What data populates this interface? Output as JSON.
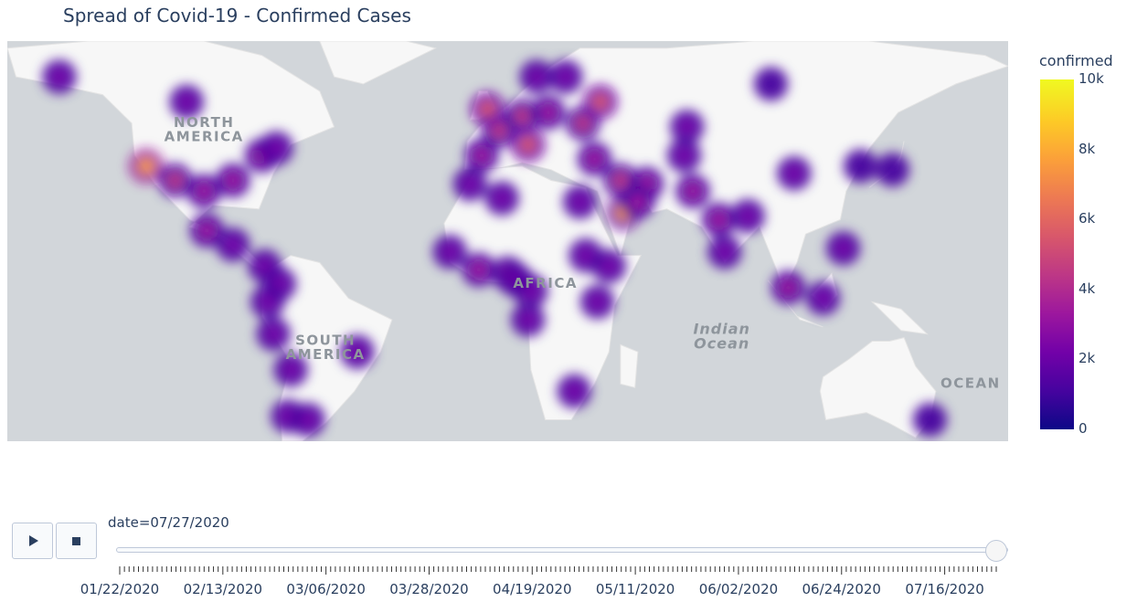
{
  "title": "Spread of Covid-19 - Confirmed Cases",
  "map": {
    "labels": [
      {
        "text": "NORTH",
        "lon": -100,
        "lat": 48
      },
      {
        "text": "AMERICA",
        "lon": -100,
        "lat": 44
      },
      {
        "text": "SOUTH",
        "lon": -58,
        "lat": -13
      },
      {
        "text": "AMERICA",
        "lon": -58,
        "lat": -17
      },
      {
        "text": "AFRICA",
        "lon": 18,
        "lat": 3
      },
      {
        "text": "Indian",
        "lon": 79,
        "lat": -10
      },
      {
        "text": "Ocean",
        "lon": 79,
        "lat": -14
      },
      {
        "text": "OCEAN",
        "lon": 165,
        "lat": -25
      }
    ],
    "info_icon": "info-icon"
  },
  "chart_data": {
    "type": "heatmap",
    "z_field": "confirmed",
    "zlim": [
      0,
      10000
    ],
    "points": [
      {
        "lon": -120,
        "lat": 37,
        "z": 8000
      },
      {
        "lon": -110,
        "lat": 33,
        "z": 4000
      },
      {
        "lon": -100,
        "lat": 30,
        "z": 3000
      },
      {
        "lon": -90,
        "lat": 33,
        "z": 3000
      },
      {
        "lon": -80,
        "lat": 40,
        "z": 3000
      },
      {
        "lon": -75,
        "lat": 42,
        "z": 2500
      },
      {
        "lon": -99,
        "lat": 19,
        "z": 3000
      },
      {
        "lon": -90,
        "lat": 15,
        "z": 2500
      },
      {
        "lon": -79,
        "lat": 9,
        "z": 2000
      },
      {
        "lon": -74,
        "lat": 4,
        "z": 2000
      },
      {
        "lon": -78,
        "lat": -1,
        "z": 2500
      },
      {
        "lon": -76,
        "lat": -10,
        "z": 2500
      },
      {
        "lon": -70,
        "lat": -20,
        "z": 2000
      },
      {
        "lon": -47,
        "lat": -15,
        "z": 2500
      },
      {
        "lon": -71,
        "lat": -33,
        "z": 2000
      },
      {
        "lon": -64,
        "lat": -34,
        "z": 2000
      },
      {
        "lon": -106,
        "lat": 55,
        "z": 2000
      },
      {
        "lon": -150,
        "lat": 62,
        "z": 2000
      },
      {
        "lon": -4,
        "lat": 40,
        "z": 3500
      },
      {
        "lon": 2,
        "lat": 47,
        "z": 4500
      },
      {
        "lon": -2,
        "lat": 53,
        "z": 5500
      },
      {
        "lon": 10,
        "lat": 51,
        "z": 4000
      },
      {
        "lon": 12,
        "lat": 43,
        "z": 5000
      },
      {
        "lon": 19,
        "lat": 52,
        "z": 3500
      },
      {
        "lon": 31,
        "lat": 49,
        "z": 4000
      },
      {
        "lon": 37,
        "lat": 55,
        "z": 6000
      },
      {
        "lon": 15,
        "lat": 62,
        "z": 2500
      },
      {
        "lon": 25,
        "lat": 62,
        "z": 2000
      },
      {
        "lon": 35,
        "lat": 39,
        "z": 3500
      },
      {
        "lon": 44,
        "lat": 33,
        "z": 4000
      },
      {
        "lon": 45,
        "lat": 24,
        "z": 7500
      },
      {
        "lon": 53,
        "lat": 32,
        "z": 3500
      },
      {
        "lon": 50,
        "lat": 27,
        "z": 3000
      },
      {
        "lon": 30,
        "lat": 27,
        "z": 2500
      },
      {
        "lon": 3,
        "lat": 28,
        "z": 2000
      },
      {
        "lon": -8,
        "lat": 32,
        "z": 2000
      },
      {
        "lon": 69,
        "lat": 30,
        "z": 3000
      },
      {
        "lon": 66,
        "lat": 40,
        "z": 2500
      },
      {
        "lon": 78,
        "lat": 22,
        "z": 3000
      },
      {
        "lon": 80,
        "lat": 13,
        "z": 2500
      },
      {
        "lon": 88,
        "lat": 23,
        "z": 2500
      },
      {
        "lon": 67,
        "lat": 48,
        "z": 2000
      },
      {
        "lon": 104,
        "lat": 35,
        "z": 2000
      },
      {
        "lon": 121,
        "lat": 14,
        "z": 2500
      },
      {
        "lon": 102,
        "lat": 3,
        "z": 3000
      },
      {
        "lon": 114,
        "lat": 0,
        "z": 2500
      },
      {
        "lon": 127,
        "lat": 37,
        "z": 1500
      },
      {
        "lon": 138,
        "lat": 36,
        "z": 1500
      },
      {
        "lon": 96,
        "lat": 60,
        "z": 1500
      },
      {
        "lon": -15,
        "lat": 13,
        "z": 2500
      },
      {
        "lon": -5,
        "lat": 8,
        "z": 3000
      },
      {
        "lon": 5,
        "lat": 7,
        "z": 3500
      },
      {
        "lon": 8,
        "lat": 5,
        "z": 2500
      },
      {
        "lon": 13,
        "lat": 2,
        "z": 2000
      },
      {
        "lon": 12,
        "lat": -6,
        "z": 2000
      },
      {
        "lon": 32,
        "lat": 12,
        "z": 2500
      },
      {
        "lon": 40,
        "lat": 9,
        "z": 2500
      },
      {
        "lon": 36,
        "lat": -1,
        "z": 2000
      },
      {
        "lon": 28,
        "lat": -26,
        "z": 2000
      },
      {
        "lon": 151,
        "lat": -34,
        "z": 1500
      }
    ]
  },
  "colorbar": {
    "title": "confirmed",
    "ticks": [
      {
        "label": "10k",
        "value": 10000
      },
      {
        "label": "8k",
        "value": 8000
      },
      {
        "label": "6k",
        "value": 6000
      },
      {
        "label": "4k",
        "value": 4000
      },
      {
        "label": "2k",
        "value": 2000
      },
      {
        "label": "0",
        "value": 0
      }
    ]
  },
  "animation": {
    "play_icon": "play-icon",
    "stop_icon": "stop-icon",
    "current_label": "date=07/27/2020",
    "position": 1.0,
    "tick_labels": [
      "01/22/2020",
      "02/13/2020",
      "03/06/2020",
      "03/28/2020",
      "04/19/2020",
      "05/11/2020",
      "06/02/2020",
      "06/24/2020",
      "07/16/2020"
    ]
  }
}
